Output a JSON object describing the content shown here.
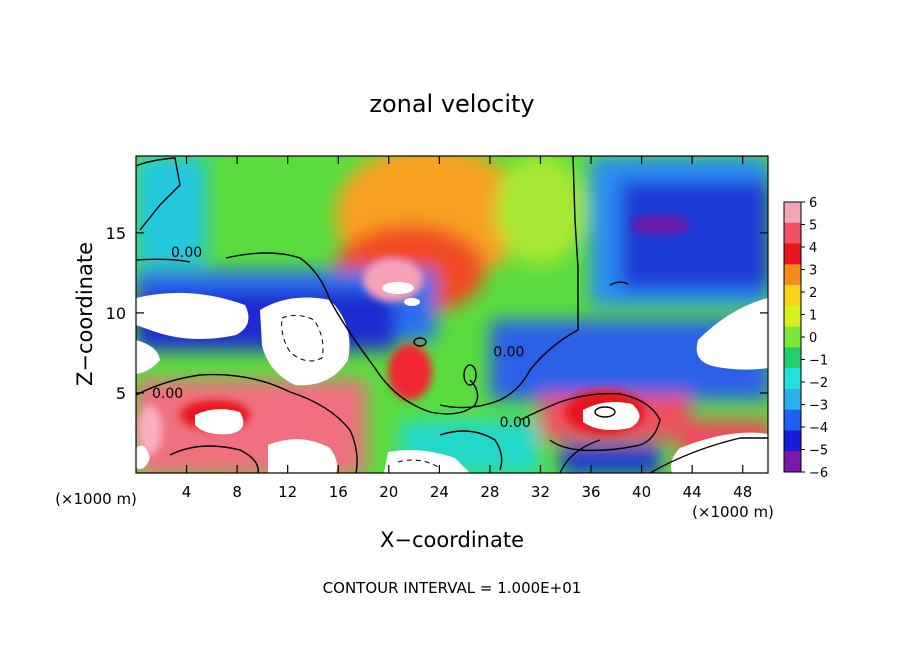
{
  "chart_data": {
    "type": "heatmap",
    "title": "zonal velocity",
    "xlabel": "X−coordinate",
    "ylabel": "Z−coordinate",
    "x_unit_left": "(×1000 m)",
    "x_unit_right": "(×1000 m)",
    "footer": "CONTOUR INTERVAL = 1.000E+01",
    "xlim": [
      0,
      50
    ],
    "ylim": [
      0,
      19.8
    ],
    "x_ticks": [
      4,
      8,
      12,
      16,
      20,
      24,
      28,
      32,
      36,
      40,
      44,
      48
    ],
    "y_ticks": [
      5,
      10,
      15
    ],
    "colorbar": {
      "levels": [
        6,
        5,
        4,
        3,
        2,
        1,
        0,
        -1,
        -2,
        -3,
        -4,
        -5,
        -6
      ],
      "colors": [
        "#f4a6b8",
        "#f05060",
        "#e8141e",
        "#f88a1e",
        "#f8d41e",
        "#d8f020",
        "#7ae83a",
        "#22d070",
        "#24e0d8",
        "#2ab0f0",
        "#2060f0",
        "#1a1ad8",
        "#7a1aa8"
      ]
    },
    "contour_labels": [
      {
        "text": "0.00",
        "x": 4.0,
        "z": 13.8
      },
      {
        "text": "0.00",
        "x": 2.5,
        "z": 5.0
      },
      {
        "text": "0.00",
        "x": 29.5,
        "z": 7.6
      },
      {
        "text": "0.00",
        "x": 30.0,
        "z": 3.2
      }
    ]
  }
}
